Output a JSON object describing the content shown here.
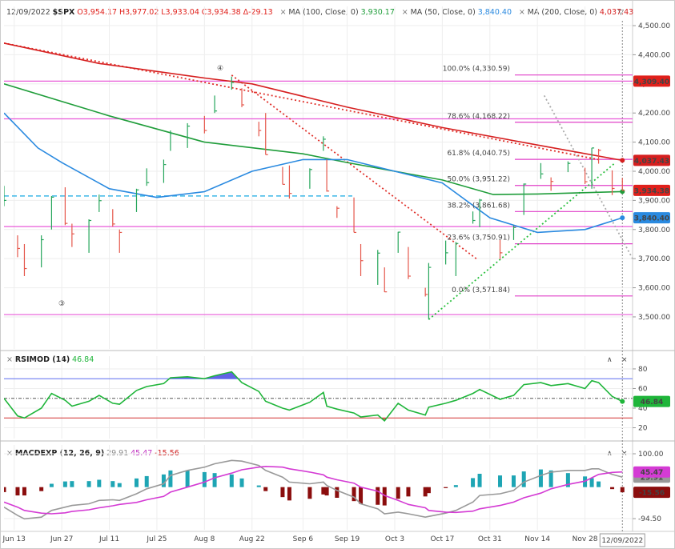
{
  "chart_data": [
    {
      "type": "ohlc",
      "header": {
        "date": "12/09/2022",
        "symbol": "$SPX",
        "open": "O3,954.17",
        "high": "H3,977.02",
        "low": "L3,933.04",
        "close": "C3,934.38",
        "change": "Δ-29.13"
      },
      "x": [
        "2022-06-10",
        "2022-06-14",
        "2022-06-16",
        "2022-06-21",
        "2022-06-24",
        "2022-06-28",
        "2022-06-30",
        "2022-07-05",
        "2022-07-08",
        "2022-07-12",
        "2022-07-14",
        "2022-07-19",
        "2022-07-22",
        "2022-07-27",
        "2022-07-29",
        "2022-08-03",
        "2022-08-08",
        "2022-08-11",
        "2022-08-16",
        "2022-08-19",
        "2022-08-24",
        "2022-08-26",
        "2022-08-31",
        "2022-09-02",
        "2022-09-08",
        "2022-09-12",
        "2022-09-13",
        "2022-09-16",
        "2022-09-21",
        "2022-09-23",
        "2022-09-28",
        "2022-09-30",
        "2022-10-04",
        "2022-10-07",
        "2022-10-12",
        "2022-10-13",
        "2022-10-18",
        "2022-10-21",
        "2022-10-26",
        "2022-10-28",
        "2022-11-03",
        "2022-11-07",
        "2022-11-10",
        "2022-11-15",
        "2022-11-18",
        "2022-11-23",
        "2022-11-28",
        "2022-11-30",
        "2022-12-02",
        "2022-12-06",
        "2022-12-09"
      ],
      "high": [
        3950,
        3780,
        3750,
        3780,
        3915,
        3945,
        3820,
        3835,
        3920,
        3870,
        3800,
        3940,
        4010,
        4040,
        4140,
        4165,
        4190,
        4260,
        4325,
        4285,
        4170,
        4200,
        4015,
        4020,
        4010,
        4120,
        4040,
        3880,
        3910,
        3750,
        3730,
        3670,
        3792,
        3740,
        3600,
        3685,
        3762,
        3757,
        3862,
        3905,
        3764,
        3814,
        3958,
        4028,
        3979,
        4034,
        4012,
        4080,
        4077,
        4003,
        3977.02
      ],
      "low": [
        3880,
        3705,
        3640,
        3670,
        3800,
        3815,
        3740,
        3720,
        3860,
        3810,
        3720,
        3860,
        3950,
        3960,
        4070,
        4080,
        4130,
        4200,
        4280,
        4220,
        4120,
        4057,
        3955,
        3906,
        3940,
        4070,
        3930,
        3840,
        3790,
        3640,
        3610,
        3585,
        3720,
        3630,
        3570,
        3491,
        3680,
        3640,
        3820,
        3808,
        3698,
        3764,
        3850,
        3974,
        3933,
        3997,
        3956,
        3940,
        4026,
        3918,
        3933.04
      ],
      "close": [
        3900,
        3735,
        3666,
        3765,
        3911,
        3821,
        3785,
        3831,
        3899,
        3819,
        3790,
        3936,
        3961,
        4023,
        4130,
        4155,
        4140,
        4207,
        4305,
        4228,
        4140,
        4057,
        3955,
        3924,
        4006,
        4110,
        3932,
        3873,
        3790,
        3693,
        3719,
        3586,
        3791,
        3640,
        3577,
        3670,
        3720,
        3752,
        3831,
        3901,
        3720,
        3807,
        3956,
        3991,
        3965,
        4027,
        3964,
        4080,
        4072,
        3941,
        3934.38
      ],
      "up_color": "#26a65b",
      "down_color": "#e5574b",
      "series": [
        {
          "name": "MA (100, Close, 0)",
          "value_label": "3,930.17",
          "color": "#1f9d3a",
          "x": [
            "2022-06-10",
            "2022-07-11",
            "2022-08-08",
            "2022-09-06",
            "2022-09-19",
            "2022-10-17",
            "2022-11-01",
            "2022-11-14",
            "2022-12-09"
          ],
          "values": [
            4300,
            4190,
            4100,
            4060,
            4030,
            3970,
            3920,
            3922,
            3930.17
          ]
        },
        {
          "name": "MA (50, Close, 0)",
          "value_label": "3,840.40",
          "color": "#2a8ae0",
          "x": [
            "2022-06-10",
            "2022-06-20",
            "2022-06-27",
            "2022-07-11",
            "2022-07-25",
            "2022-08-08",
            "2022-08-22",
            "2022-09-06",
            "2022-09-19",
            "2022-10-03",
            "2022-10-17",
            "2022-10-31",
            "2022-11-14",
            "2022-11-28",
            "2022-12-09"
          ],
          "values": [
            4200,
            4080,
            4030,
            3940,
            3910,
            3930,
            4000,
            4040,
            4040,
            4000,
            3960,
            3840,
            3790,
            3800,
            3840.4
          ]
        },
        {
          "name": "MA (200, Close, 0)",
          "value_label": "4,037.43",
          "color": "#d61f1f",
          "x": [
            "2022-06-10",
            "2022-07-08",
            "2022-08-08",
            "2022-08-22",
            "2022-09-19",
            "2022-10-17",
            "2022-11-14",
            "2022-12-09"
          ],
          "values": [
            4440,
            4370,
            4320,
            4300,
            4220,
            4150,
            4090,
            4037.43
          ]
        }
      ],
      "fib_levels": [
        {
          "label": "100.0% (4,330.59)",
          "value": 4330.59
        },
        {
          "label": "78.6% (4,168.22)",
          "value": 4168.22
        },
        {
          "label": "61.8% (4,040.75)",
          "value": 4040.75
        },
        {
          "label": "50.0% (3,951.22)",
          "value": 3951.22
        },
        {
          "label": "38.2% (3,861.68)",
          "value": 3861.68
        },
        {
          "label": "23.6% (3,750.91)",
          "value": 3750.91
        },
        {
          "label": "0.0% (3,571.84)",
          "value": 3571.84
        }
      ],
      "fib_color": "#e040c8",
      "hlines": [
        4309.4,
        4180,
        3810,
        3508
      ],
      "hline_color": "#e85ad8",
      "dashed_line": 3915,
      "dashed_color": "#3cb8e8",
      "trendlines": [
        {
          "color": "#e0302a",
          "points": [
            [
              "2022-06-10",
              4440
            ],
            [
              "2022-12-02",
              4040
            ]
          ]
        },
        {
          "color": "#e0302a",
          "points": [
            [
              "2022-08-16",
              4330
            ],
            [
              "2022-10-27",
              3700
            ]
          ]
        },
        {
          "color": "#2cc040",
          "points": [
            [
              "2022-10-13",
              3491
            ],
            [
              "2022-12-07",
              4030
            ]
          ]
        },
        {
          "color": "#aaaaaa",
          "points": [
            [
              "2022-11-16",
              4260
            ],
            [
              "2022-12-12",
              3700
            ]
          ]
        }
      ],
      "badges": [
        {
          "value": 4309.4,
          "label": "4,309.40",
          "color": "#e0201b"
        },
        {
          "value": 4037.43,
          "label": "4,037.43",
          "color": "#d61f1f"
        },
        {
          "value": 3934.38,
          "label": "3,934.38",
          "color": "#e0201b"
        },
        {
          "value": 3840.4,
          "label": "3,840.40",
          "color": "#2a8ae0"
        }
      ],
      "annotations": [
        "④",
        "③"
      ],
      "ylim": [
        3390,
        4566
      ],
      "yticks": [
        {
          "value": 3500,
          "label": "3,500.00"
        },
        {
          "value": 3600,
          "label": "3,600.00"
        },
        {
          "value": 3700,
          "label": "3,700.00"
        },
        {
          "value": 3800,
          "label": "3,800.00"
        },
        {
          "value": 3900,
          "label": "3,900.00"
        },
        {
          "value": 4000,
          "label": "4,000.00"
        },
        {
          "value": 4100,
          "label": "4,100.00"
        },
        {
          "value": 4200,
          "label": "4,200.00"
        },
        {
          "value": 4300,
          "label": "4,300.00"
        },
        {
          "value": 4400,
          "label": "4,400.00"
        },
        {
          "value": 4500,
          "label": "4,500.00"
        }
      ],
      "xlim": [
        "2022-06-10",
        "2022-12-12"
      ],
      "xticks": [
        {
          "value": "2022-06-13",
          "label": "Jun 13"
        },
        {
          "value": "2022-06-27",
          "label": "Jun 27"
        },
        {
          "value": "2022-07-11",
          "label": "Jul 11"
        },
        {
          "value": "2022-07-25",
          "label": "Jul 25"
        },
        {
          "value": "2022-08-08",
          "label": "Aug 8"
        },
        {
          "value": "2022-08-22",
          "label": "Aug 22"
        },
        {
          "value": "2022-09-06",
          "label": "Sep 6"
        },
        {
          "value": "2022-09-19",
          "label": "Sep 19"
        },
        {
          "value": "2022-10-03",
          "label": "Oct 3"
        },
        {
          "value": "2022-10-17",
          "label": "Oct 17"
        },
        {
          "value": "2022-10-31",
          "label": "Oct 31"
        },
        {
          "value": "2022-11-14",
          "label": "Nov 14"
        },
        {
          "value": "2022-11-28",
          "label": "Nov 28"
        }
      ],
      "grid": true
    },
    {
      "type": "rsi",
      "title": "RSIMOD (14)",
      "value_label": "46.84",
      "color": "#1fb53a",
      "values": [
        50,
        32,
        30,
        40,
        55,
        48,
        42,
        47,
        53,
        45,
        44,
        58,
        62,
        65,
        71,
        72,
        70,
        73,
        77,
        66,
        57,
        47,
        40,
        38,
        46,
        56,
        42,
        39,
        35,
        31,
        33,
        27,
        45,
        38,
        33,
        41,
        45,
        48,
        55,
        59,
        49,
        53,
        64,
        66,
        63,
        65,
        60,
        68,
        66,
        52,
        46.84
      ],
      "levels": [
        {
          "value": 70,
          "color": "#5d6ff0",
          "fill": "#3c3ce0",
          "fill_side": "above"
        },
        {
          "value": 50,
          "color": "#555555",
          "dash": true
        },
        {
          "value": 30,
          "color": "#d33333",
          "fill": "#e84848",
          "fill_side": "below"
        }
      ],
      "ylim": [
        9,
        93
      ],
      "yticks": [
        20,
        40,
        60,
        80
      ]
    },
    {
      "type": "macd",
      "title": "MACDEXP (12, 26, 9)",
      "series": [
        {
          "kind": "line",
          "value_label": "29.91",
          "color": "#999999",
          "values": [
            -60,
            -85,
            -95,
            -90,
            -70,
            -60,
            -55,
            -50,
            -40,
            -38,
            -40,
            -20,
            -5,
            10,
            35,
            50,
            60,
            70,
            80,
            78,
            65,
            50,
            30,
            15,
            10,
            15,
            5,
            -10,
            -30,
            -50,
            -65,
            -80,
            -75,
            -80,
            -90,
            -88,
            -78,
            -70,
            -45,
            -25,
            -20,
            -10,
            15,
            35,
            45,
            50,
            50,
            55,
            55,
            38,
            29.91
          ]
        },
        {
          "kind": "line",
          "value_label": "45.47",
          "color": "#d43bd4",
          "values": [
            -45,
            -60,
            -70,
            -78,
            -80,
            -77,
            -73,
            -68,
            -62,
            -56,
            -52,
            -46,
            -38,
            -28,
            -15,
            0,
            15,
            28,
            42,
            52,
            60,
            62,
            60,
            55,
            45,
            37,
            30,
            22,
            12,
            0,
            -12,
            -25,
            -40,
            -52,
            -62,
            -70,
            -75,
            -76,
            -72,
            -65,
            -55,
            -45,
            -32,
            -18,
            -5,
            8,
            18,
            28,
            38,
            44,
            45.47
          ]
        },
        {
          "kind": "histogram",
          "value_label": "-15.56",
          "color": "#8b0d0d",
          "positive_color": "#1ea5b4",
          "values": [
            -15,
            -25,
            -25,
            -12,
            10,
            17,
            18,
            18,
            22,
            18,
            12,
            26,
            33,
            38,
            50,
            50,
            45,
            42,
            38,
            26,
            5,
            -12,
            -30,
            -40,
            -35,
            -22,
            -25,
            -32,
            -42,
            -50,
            -53,
            -55,
            -35,
            -28,
            -28,
            -18,
            -3,
            6,
            27,
            40,
            35,
            35,
            47,
            53,
            50,
            42,
            32,
            27,
            17,
            -6,
            -15.56
          ]
        }
      ],
      "ylim": [
        -128,
        126.4
      ],
      "yticks": [
        {
          "value": 100,
          "label": "100.00"
        },
        {
          "value": -94.5,
          "label": "-94.50"
        }
      ]
    }
  ]
}
